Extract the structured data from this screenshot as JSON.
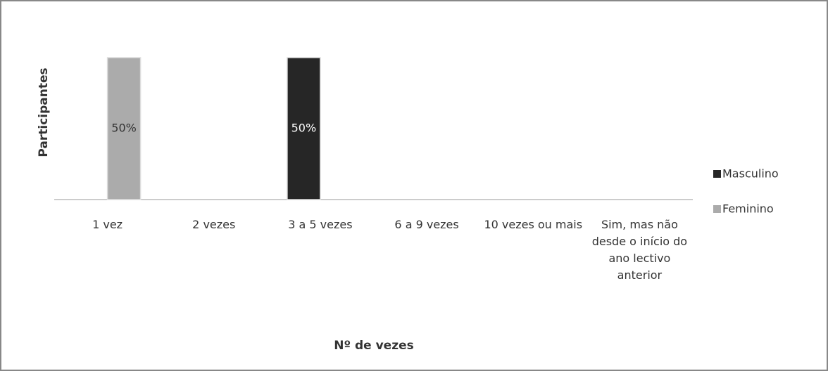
{
  "chart_data": {
    "type": "bar",
    "x_label": "Nº de vezes",
    "y_label": "Participantes",
    "categories": [
      "1 vez",
      "2 vezes",
      "3 a 5 vezes",
      "6 a 9 vezes",
      "10 vezes ou mais",
      "Sim, mas não desde o início do ano lectivo anterior"
    ],
    "series": [
      {
        "name": "Masculino",
        "color": "#262626",
        "values": [
          null,
          null,
          50,
          null,
          null,
          null
        ],
        "value_labels": [
          null,
          null,
          "50%",
          null,
          null,
          null
        ]
      },
      {
        "name": "Feminino",
        "color": "#ababab",
        "values": [
          50,
          null,
          null,
          null,
          null,
          null
        ],
        "value_labels": [
          "50%",
          null,
          null,
          null,
          null,
          null
        ]
      }
    ],
    "ylim": [
      0,
      50
    ],
    "legend": "right"
  }
}
